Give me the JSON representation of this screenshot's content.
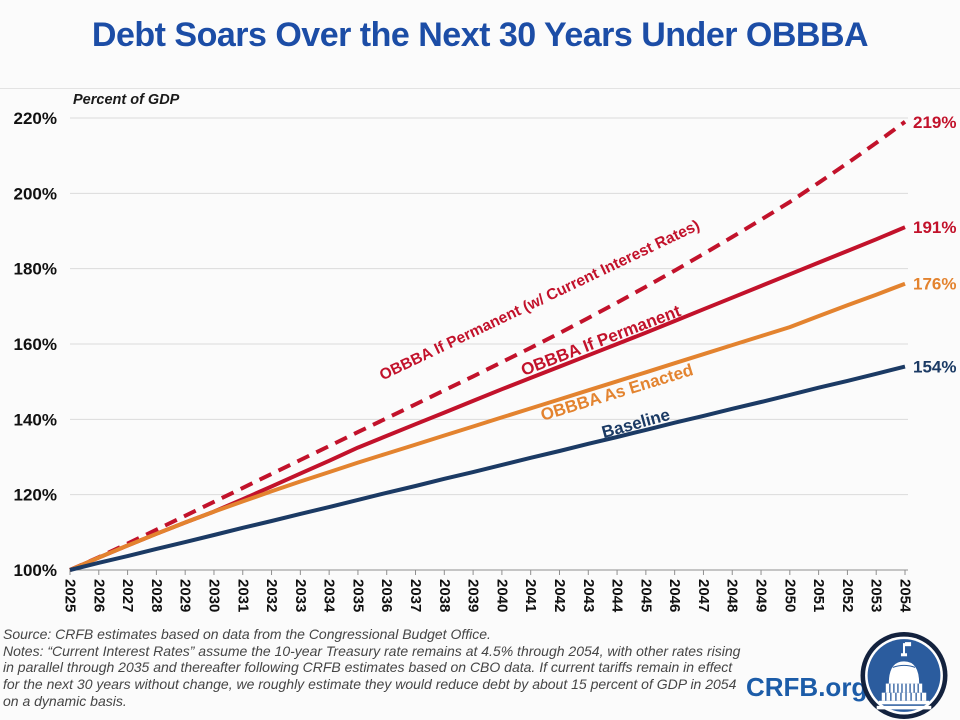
{
  "header": {
    "title": "Debt Soars Over the Next 30 Years Under OBBBA"
  },
  "chart_data": {
    "type": "line",
    "title": "Debt Soars Over the Next 30 Years Under OBBBA",
    "axis_label": "Percent of GDP",
    "ylim": [
      100,
      220
    ],
    "ytick_step": 20,
    "ytick_labels": [
      "100%",
      "120%",
      "140%",
      "160%",
      "180%",
      "200%",
      "220%"
    ],
    "grid": "horizontal-only",
    "legend": "labels-along-lines",
    "x": [
      2025,
      2026,
      2027,
      2028,
      2029,
      2030,
      2031,
      2032,
      2033,
      2034,
      2035,
      2036,
      2037,
      2038,
      2039,
      2040,
      2041,
      2042,
      2043,
      2044,
      2045,
      2046,
      2047,
      2048,
      2049,
      2050,
      2051,
      2052,
      2053,
      2054
    ],
    "series": [
      {
        "name": "OBBBA If Permanent (w/ Current Interest Rates)",
        "color": "#C2122B",
        "line_style": "dashed",
        "end_label": "219%",
        "end_value": 219,
        "values": [
          100.0,
          103.4,
          107.0,
          110.7,
          114.4,
          118.1,
          121.8,
          125.5,
          129.2,
          132.9,
          136.6,
          140.3,
          144.0,
          147.7,
          151.4,
          155.2,
          159.0,
          162.9,
          166.9,
          171.0,
          175.2,
          179.5,
          183.9,
          188.4,
          193.0,
          197.7,
          202.8,
          208.0,
          213.4,
          219.0
        ]
      },
      {
        "name": "OBBBA If Permanent",
        "color": "#C2122B",
        "line_style": "solid",
        "end_label": "191%",
        "end_value": 191,
        "values": [
          100.0,
          103.3,
          106.5,
          109.6,
          112.6,
          115.5,
          118.8,
          122.2,
          125.6,
          129.0,
          132.5,
          135.6,
          138.7,
          141.8,
          144.9,
          148.0,
          151.0,
          154.0,
          157.0,
          160.0,
          163.0,
          166.1,
          169.2,
          172.3,
          175.4,
          178.5,
          181.6,
          184.7,
          187.8,
          191.0
        ]
      },
      {
        "name": "OBBBA As Enacted",
        "color": "#E3832F",
        "line_style": "solid",
        "end_label": "176%",
        "end_value": 176,
        "values": [
          100.0,
          103.3,
          106.5,
          109.6,
          112.6,
          115.5,
          118.2,
          120.9,
          123.5,
          126.0,
          128.5,
          130.9,
          133.3,
          135.7,
          138.1,
          140.5,
          142.9,
          145.3,
          147.7,
          150.1,
          152.5,
          154.9,
          157.3,
          159.7,
          162.1,
          164.5,
          167.4,
          170.3,
          173.1,
          176.0
        ]
      },
      {
        "name": "Baseline",
        "color": "#1B3A64",
        "line_style": "solid",
        "end_label": "154%",
        "end_value": 154,
        "values": [
          100.0,
          101.9,
          103.7,
          105.6,
          107.4,
          109.3,
          111.2,
          113.0,
          114.9,
          116.7,
          118.6,
          120.5,
          122.3,
          124.2,
          126.0,
          127.9,
          129.8,
          131.6,
          133.5,
          135.3,
          137.2,
          139.1,
          140.9,
          142.8,
          144.6,
          146.5,
          148.4,
          150.2,
          152.1,
          154.0
        ]
      }
    ]
  },
  "footer": {
    "source": "Source: CRFB estimates based on data from the Congressional Budget Office.",
    "notes": "Notes: “Current Interest Rates” assume the 10-year Treasury rate remains at 4.5% through 2054, with other rates rising in parallel through 2035 and thereafter following CRFB estimates based on CBO data. If current tariffs remain in effect for the next 30 years without change, we roughly estimate they would reduce debt by about 15 percent of GDP in 2054 on a dynamic basis.",
    "wordmark": "CRFB.org"
  },
  "colors": {
    "title_blue": "#1C4DA6",
    "wordmark_blue": "#1C5CA8",
    "red": "#C2122B",
    "orange": "#E3832F",
    "baseline_blue": "#1B3A64",
    "gridline": "#DBDBDB",
    "axis": "#8F8F8F"
  }
}
